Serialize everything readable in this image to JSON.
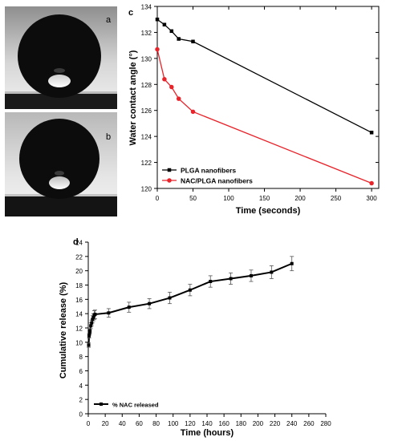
{
  "photos": [
    {
      "label": "a"
    },
    {
      "label": "b"
    }
  ],
  "chart_data": [
    {
      "panel_label": "c",
      "type": "line",
      "xlabel": "Time (seconds)",
      "ylabel": "Water contact angle (°)",
      "xlim": [
        0,
        310
      ],
      "ylim": [
        120,
        134
      ],
      "xticks": [
        0,
        50,
        100,
        150,
        200,
        250,
        300
      ],
      "yticks": [
        120,
        122,
        124,
        126,
        128,
        130,
        132,
        134
      ],
      "legend_position": "bottom-left",
      "series": [
        {
          "name": "PLGA nanofibers",
          "color": "#000000",
          "marker": "square",
          "x": [
            0,
            10,
            20,
            30,
            50,
            300
          ],
          "y": [
            133.0,
            132.6,
            132.1,
            131.5,
            131.3,
            124.3
          ]
        },
        {
          "name": "NAC/PLGA nanofibers",
          "color": "#e8232a",
          "marker": "circle",
          "x": [
            0,
            10,
            20,
            30,
            50,
            300
          ],
          "y": [
            130.7,
            128.4,
            127.8,
            126.9,
            125.9,
            120.4
          ]
        }
      ]
    },
    {
      "panel_label": "d",
      "type": "line",
      "xlabel": "Time (hours)",
      "ylabel": "Cumulative release (%)",
      "xlim": [
        0,
        280
      ],
      "ylim": [
        0,
        24
      ],
      "xticks": [
        0,
        20,
        40,
        60,
        80,
        100,
        120,
        140,
        160,
        180,
        200,
        220,
        240,
        260,
        280
      ],
      "yticks": [
        0,
        2,
        4,
        6,
        8,
        10,
        12,
        14,
        16,
        18,
        20,
        22,
        24
      ],
      "legend_position": "bottom-left",
      "series": [
        {
          "name": "% NAC released",
          "color": "#000000",
          "marker": "square",
          "x": [
            0.5,
            1,
            1.5,
            2,
            3,
            4,
            5,
            6,
            7,
            8,
            24,
            48,
            72,
            96,
            120,
            144,
            168,
            192,
            216,
            240
          ],
          "y": [
            9.6,
            10.9,
            11.3,
            11.6,
            12.3,
            12.7,
            13.2,
            13.5,
            13.8,
            13.9,
            14.1,
            14.9,
            15.4,
            16.2,
            17.3,
            18.5,
            18.9,
            19.3,
            19.8,
            21.0
          ],
          "err": [
            0.3,
            0.3,
            0.3,
            0.3,
            0.4,
            0.4,
            0.5,
            0.5,
            0.6,
            0.6,
            0.6,
            0.7,
            0.7,
            0.8,
            0.8,
            0.8,
            0.8,
            0.8,
            0.9,
            1.0
          ]
        }
      ]
    }
  ]
}
